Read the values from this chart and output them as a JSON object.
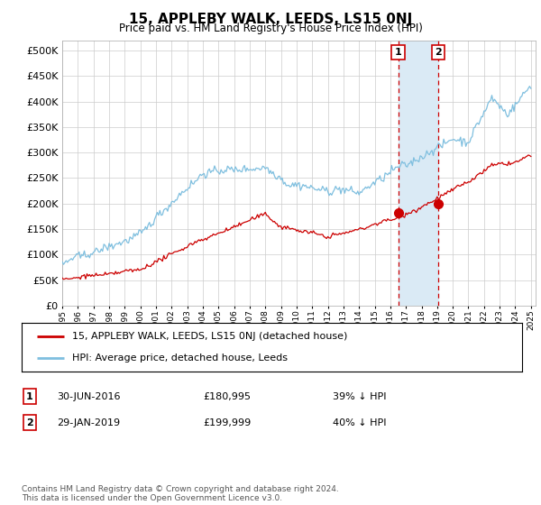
{
  "title": "15, APPLEBY WALK, LEEDS, LS15 0NJ",
  "subtitle": "Price paid vs. HM Land Registry's House Price Index (HPI)",
  "ylim": [
    0,
    520000
  ],
  "yticks": [
    0,
    50000,
    100000,
    150000,
    200000,
    250000,
    300000,
    350000,
    400000,
    450000,
    500000
  ],
  "xlim_start": 1995.0,
  "xlim_end": 2025.3,
  "marker1_x": 2016.5,
  "marker2_x": 2019.08,
  "marker1_y": 180995,
  "marker2_y": 199999,
  "sale1_date": "30-JUN-2016",
  "sale1_price": "£180,995",
  "sale1_pct": "39% ↓ HPI",
  "sale2_date": "29-JAN-2019",
  "sale2_price": "£199,999",
  "sale2_pct": "40% ↓ HPI",
  "hpi_color": "#7fbfdf",
  "sold_color": "#cc0000",
  "shaded_color": "#daeaf5",
  "legend1_label": "15, APPLEBY WALK, LEEDS, LS15 0NJ (detached house)",
  "legend2_label": "HPI: Average price, detached house, Leeds",
  "footnote": "Contains HM Land Registry data © Crown copyright and database right 2024.\nThis data is licensed under the Open Government Licence v3.0.",
  "background_color": "#ffffff",
  "grid_color": "#cccccc",
  "chart_bg": "#ffffff"
}
